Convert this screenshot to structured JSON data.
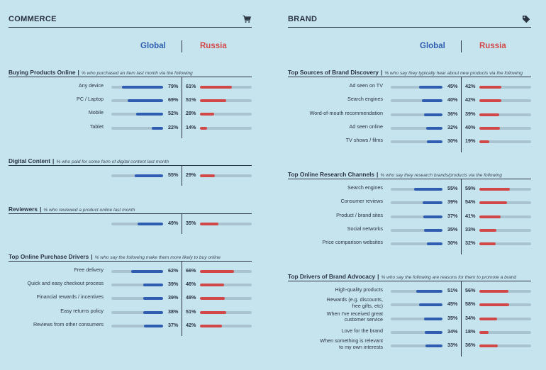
{
  "commerce": {
    "title": "COMMERCE",
    "icon": "shopping-cart-icon",
    "col_global": "Global",
    "col_russia": "Russia",
    "sections": [
      {
        "title": "Buying Products Online",
        "subtitle": "% who purchased an item last month via the following",
        "rows": [
          {
            "label": "Any device",
            "global": "79%",
            "russia": "61%"
          },
          {
            "label": "PC / Laptop",
            "global": "69%",
            "russia": "51%"
          },
          {
            "label": "Mobile",
            "global": "52%",
            "russia": "28%"
          },
          {
            "label": "Tablet",
            "global": "22%",
            "russia": "14%"
          }
        ]
      },
      {
        "title": "Digital Content",
        "subtitle": "% who paid for some form of digital content last month",
        "rows": [
          {
            "label": "",
            "global": "55%",
            "russia": "29%"
          }
        ]
      },
      {
        "title": "Reviewers",
        "subtitle": "% who reviewed a product online last month",
        "rows": [
          {
            "label": "",
            "global": "49%",
            "russia": "35%"
          }
        ]
      },
      {
        "title": "Top Online Purchase Drivers",
        "subtitle": "% who say the following make them more likely to buy online",
        "rows": [
          {
            "label": "Free delivery",
            "global": "62%",
            "russia": "66%"
          },
          {
            "label": "Quick and easy checkout process",
            "global": "39%",
            "russia": "46%"
          },
          {
            "label": "Financial rewards / incentives",
            "global": "39%",
            "russia": "48%"
          },
          {
            "label": "Easy returns policy",
            "global": "38%",
            "russia": "51%"
          },
          {
            "label": "Reviews from other consumers",
            "global": "37%",
            "russia": "42%"
          }
        ]
      }
    ]
  },
  "brand": {
    "title": "BRAND",
    "icon": "tag-icon",
    "col_global": "Global",
    "col_russia": "Russia",
    "sections": [
      {
        "title": "Top Sources of Brand Discovery",
        "subtitle": "% who say they typically hear about new products via the following",
        "rows": [
          {
            "label": "Ad seen on TV",
            "global": "45%",
            "russia": "42%"
          },
          {
            "label": "Search engines",
            "global": "40%",
            "russia": "42%"
          },
          {
            "label": "Word-of-mouth recommendation",
            "global": "36%",
            "russia": "39%"
          },
          {
            "label": "Ad seen online",
            "global": "32%",
            "russia": "40%"
          },
          {
            "label": "TV shows / films",
            "global": "30%",
            "russia": "19%"
          }
        ]
      },
      {
        "title": "Top Online Research Channels",
        "subtitle": "% who say they research brands/products via the following",
        "rows": [
          {
            "label": "Search engines",
            "global": "55%",
            "russia": "59%"
          },
          {
            "label": "Consumer reviews",
            "global": "39%",
            "russia": "54%"
          },
          {
            "label": "Product / brand sites",
            "global": "37%",
            "russia": "41%"
          },
          {
            "label": "Social networks",
            "global": "35%",
            "russia": "33%"
          },
          {
            "label": "Price comparison websites",
            "global": "30%",
            "russia": "32%"
          }
        ]
      },
      {
        "title": "Top Drivers of Brand Advocacy",
        "subtitle": "% who say the following are reasons for them to promote a brand",
        "rows": [
          {
            "label": "High-quality products",
            "global": "51%",
            "russia": "56%"
          },
          {
            "label": "Rewards (e.g. discounts, free gifts, etc)",
            "global": "45%",
            "russia": "58%"
          },
          {
            "label": "When I've received great customer service",
            "global": "35%",
            "russia": "34%"
          },
          {
            "label": "Love for the brand",
            "global": "34%",
            "russia": "18%"
          },
          {
            "label": "When something is relevant to my own interests",
            "global": "33%",
            "russia": "36%"
          }
        ]
      }
    ]
  },
  "chart_data": [
    {
      "type": "bar",
      "title": "Buying Products Online",
      "categories": [
        "Any device",
        "PC / Laptop",
        "Mobile",
        "Tablet"
      ],
      "series": [
        {
          "name": "Global",
          "values": [
            79,
            69,
            52,
            22
          ]
        },
        {
          "name": "Russia",
          "values": [
            61,
            51,
            28,
            14
          ]
        }
      ],
      "ylim": [
        0,
        100
      ]
    },
    {
      "type": "bar",
      "title": "Digital Content",
      "categories": [
        ""
      ],
      "series": [
        {
          "name": "Global",
          "values": [
            55
          ]
        },
        {
          "name": "Russia",
          "values": [
            29
          ]
        }
      ],
      "ylim": [
        0,
        100
      ]
    },
    {
      "type": "bar",
      "title": "Reviewers",
      "categories": [
        ""
      ],
      "series": [
        {
          "name": "Global",
          "values": [
            49
          ]
        },
        {
          "name": "Russia",
          "values": [
            35
          ]
        }
      ],
      "ylim": [
        0,
        100
      ]
    },
    {
      "type": "bar",
      "title": "Top Online Purchase Drivers",
      "categories": [
        "Free delivery",
        "Quick and easy checkout process",
        "Financial rewards / incentives",
        "Easy returns policy",
        "Reviews from other consumers"
      ],
      "series": [
        {
          "name": "Global",
          "values": [
            62,
            39,
            39,
            38,
            37
          ]
        },
        {
          "name": "Russia",
          "values": [
            66,
            46,
            48,
            51,
            42
          ]
        }
      ],
      "ylim": [
        0,
        100
      ]
    },
    {
      "type": "bar",
      "title": "Top Sources of Brand Discovery",
      "categories": [
        "Ad seen on TV",
        "Search engines",
        "Word-of-mouth recommendation",
        "Ad seen online",
        "TV shows / films"
      ],
      "series": [
        {
          "name": "Global",
          "values": [
            45,
            40,
            36,
            32,
            30
          ]
        },
        {
          "name": "Russia",
          "values": [
            42,
            42,
            39,
            40,
            19
          ]
        }
      ],
      "ylim": [
        0,
        100
      ]
    },
    {
      "type": "bar",
      "title": "Top Online Research Channels",
      "categories": [
        "Search engines",
        "Consumer reviews",
        "Product / brand sites",
        "Social networks",
        "Price comparison websites"
      ],
      "series": [
        {
          "name": "Global",
          "values": [
            55,
            39,
            37,
            35,
            30
          ]
        },
        {
          "name": "Russia",
          "values": [
            59,
            54,
            41,
            33,
            32
          ]
        }
      ],
      "ylim": [
        0,
        100
      ]
    },
    {
      "type": "bar",
      "title": "Top Drivers of Brand Advocacy",
      "categories": [
        "High-quality products",
        "Rewards (e.g. discounts, free gifts, etc)",
        "When I've received great customer service",
        "Love for the brand",
        "When something is relevant to my own interests"
      ],
      "series": [
        {
          "name": "Global",
          "values": [
            51,
            45,
            35,
            34,
            33
          ]
        },
        {
          "name": "Russia",
          "values": [
            56,
            58,
            34,
            18,
            36
          ]
        }
      ],
      "ylim": [
        0,
        100
      ]
    }
  ]
}
